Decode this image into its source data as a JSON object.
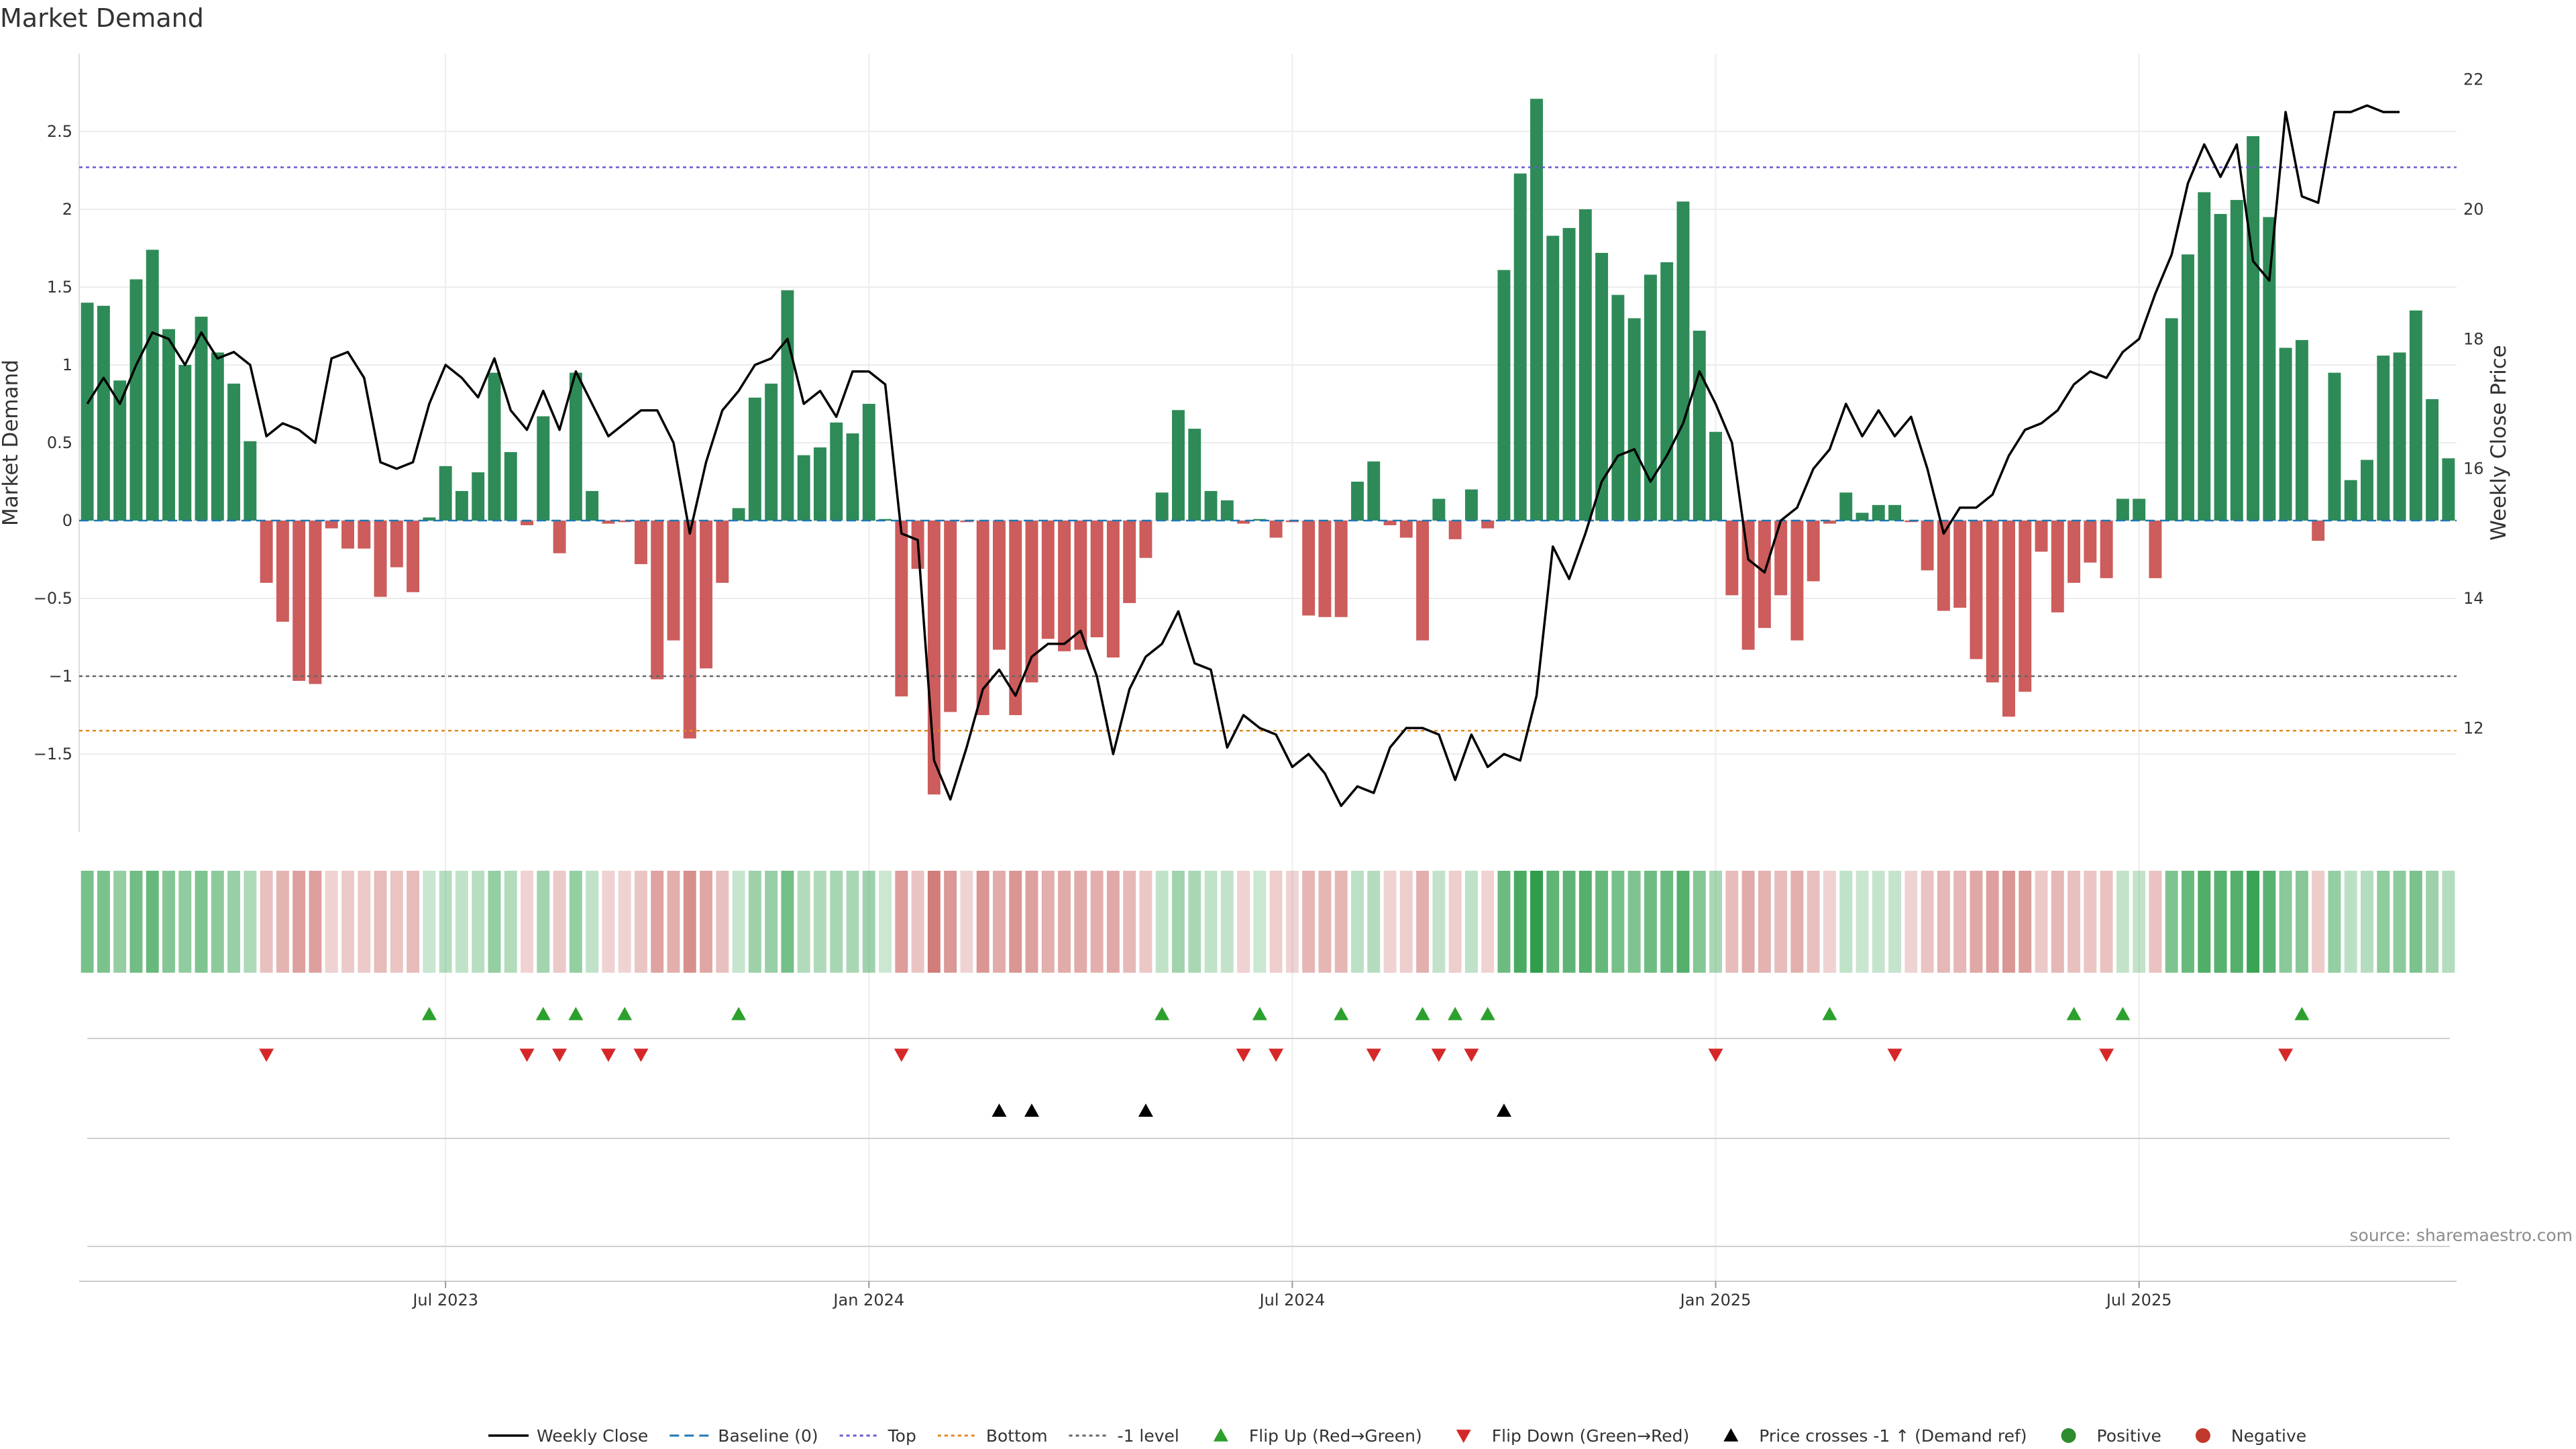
{
  "chart_data": {
    "type": "bar+line",
    "title": "Market Demand",
    "ylabel_left": "Market Demand",
    "ylabel_right": "Weekly Close Price",
    "y_left_range": [
      -2.0,
      3.0
    ],
    "y_left_ticks": [
      -1.5,
      -1,
      -0.5,
      0,
      0.5,
      1,
      1.5,
      2,
      2.5
    ],
    "y_left_tick_labels": [
      "−1.5",
      "−1",
      "−0.5",
      "0",
      "0.5",
      "1",
      "1.5",
      "2",
      "2.5"
    ],
    "y_right_range": [
      10.4,
      22.4
    ],
    "y_right_ticks": [
      12,
      14,
      16,
      18,
      20,
      22
    ],
    "y_right_tick_labels": [
      "12",
      "14",
      "16",
      "18",
      "20",
      "22"
    ],
    "x_tick_labels": [
      "Jul 2023",
      "Jan 2024",
      "Jul 2024",
      "Jan 2025",
      "Jul 2025"
    ],
    "x_tick_weeks": [
      22,
      48,
      74,
      100,
      126
    ],
    "reference_lines": [
      {
        "name": "Baseline (0)",
        "value": 0,
        "color": "#1f77b4"
      },
      {
        "name": "Top",
        "value": 2.27,
        "color": "#6a5acd"
      },
      {
        "name": "Bottom",
        "value": -1.35,
        "color": "#e08a1e"
      },
      {
        "name": "-1 level",
        "value": -1.0,
        "color": "#666666"
      }
    ],
    "demand": [
      1.4,
      1.38,
      0.9,
      1.55,
      1.74,
      1.23,
      1.0,
      1.31,
      1.08,
      0.88,
      0.51,
      -0.4,
      -0.65,
      -1.03,
      -1.05,
      -0.05,
      -0.18,
      -0.18,
      -0.49,
      -0.3,
      -0.46,
      0.02,
      0.35,
      0.19,
      0.31,
      0.95,
      0.44,
      -0.03,
      0.67,
      -0.21,
      0.95,
      0.19,
      -0.02,
      -0.01,
      -0.28,
      -1.02,
      -0.77,
      -1.4,
      -0.95,
      -0.4,
      0.08,
      0.79,
      0.88,
      1.48,
      0.42,
      0.47,
      0.63,
      0.56,
      0.75,
      0.01,
      -1.13,
      -0.31,
      -1.76,
      -1.23,
      -0.01,
      -1.25,
      -0.83,
      -1.25,
      -1.04,
      -0.76,
      -0.84,
      -0.83,
      -0.75,
      -0.88,
      -0.53,
      -0.24,
      0.18,
      0.71,
      0.59,
      0.19,
      0.13,
      -0.02,
      0.01,
      -0.11,
      -0.01,
      -0.61,
      -0.62,
      -0.62,
      0.25,
      0.38,
      -0.03,
      -0.11,
      -0.77,
      0.14,
      -0.12,
      0.2,
      -0.05,
      1.61,
      2.23,
      2.71,
      1.83,
      1.88,
      2.0,
      1.72,
      1.45,
      1.3,
      1.58,
      1.66,
      2.05,
      1.22,
      0.57,
      -0.48,
      -0.83,
      -0.69,
      -0.48,
      -0.77,
      -0.39,
      -0.02,
      0.18,
      0.05,
      0.1,
      0.1,
      -0.01,
      -0.32,
      -0.58,
      -0.56,
      -0.89,
      -1.04,
      -1.26,
      -1.1,
      -0.2,
      -0.59,
      -0.4,
      -0.27,
      -0.37,
      0.14,
      0.14,
      -0.37,
      1.3,
      1.71,
      2.11,
      1.97,
      2.06,
      2.47,
      1.95,
      1.11,
      1.16,
      -0.13,
      0.95,
      0.26,
      0.39,
      1.06,
      1.08,
      1.35,
      0.78,
      0.4
    ],
    "close": [
      17.0,
      17.4,
      17.0,
      17.6,
      18.1,
      18.0,
      17.6,
      18.1,
      17.7,
      17.8,
      17.6,
      16.5,
      16.7,
      16.6,
      16.4,
      17.7,
      17.8,
      17.4,
      16.1,
      16.0,
      16.1,
      17.0,
      17.6,
      17.4,
      17.1,
      17.7,
      16.9,
      16.6,
      17.2,
      16.6,
      17.5,
      17.0,
      16.5,
      16.7,
      16.9,
      16.9,
      16.4,
      15.0,
      16.1,
      16.9,
      17.2,
      17.6,
      17.7,
      18.0,
      17.0,
      17.2,
      16.8,
      17.5,
      17.5,
      17.3,
      15.0,
      14.9,
      11.5,
      10.9,
      11.7,
      12.6,
      12.9,
      12.5,
      13.1,
      13.3,
      13.3,
      13.5,
      12.8,
      11.6,
      12.6,
      13.1,
      13.3,
      13.8,
      13.0,
      12.9,
      11.7,
      12.2,
      12.0,
      11.9,
      11.4,
      11.6,
      11.3,
      10.8,
      11.1,
      11.0,
      11.7,
      12.0,
      12.0,
      11.9,
      11.2,
      11.9,
      11.4,
      11.6,
      11.5,
      12.5,
      14.8,
      14.3,
      15.0,
      15.8,
      16.2,
      16.3,
      15.8,
      16.2,
      16.7,
      17.5,
      17.0,
      16.4,
      14.6,
      14.4,
      15.2,
      15.4,
      16.0,
      16.3,
      17.0,
      16.5,
      16.9,
      16.5,
      16.8,
      16.0,
      15.0,
      15.4,
      15.4,
      15.6,
      16.2,
      16.6,
      16.7,
      16.9,
      17.3,
      17.5,
      17.4,
      17.8,
      18.0,
      18.7,
      19.3,
      20.4,
      21.0,
      20.5,
      21.0,
      19.2,
      18.9,
      21.5,
      20.2,
      20.1,
      21.5,
      21.5,
      21.6,
      21.5,
      21.5
    ],
    "flip_up_weeks": [
      21,
      28,
      30,
      33,
      40,
      66,
      72,
      77,
      82,
      84,
      86,
      107,
      122,
      125,
      136
    ],
    "flip_down_weeks": [
      11,
      27,
      29,
      32,
      34,
      50,
      71,
      73,
      79,
      83,
      85,
      100,
      111,
      124,
      135
    ],
    "price_cross_weeks": [
      56,
      58,
      65,
      87
    ],
    "source_text": "source: sharemaestro.com",
    "legend": [
      {
        "label": "Weekly Close",
        "symbol": "line",
        "color": "#000000"
      },
      {
        "label": "Baseline (0)",
        "symbol": "dash",
        "color": "#1f77b4"
      },
      {
        "label": "Top",
        "symbol": "dot",
        "color": "#6a5acd"
      },
      {
        "label": "Bottom",
        "symbol": "dot",
        "color": "#e08a1e"
      },
      {
        "label": "-1 level",
        "symbol": "dot",
        "color": "#666666"
      },
      {
        "label": "Flip Up (Red→Green)",
        "symbol": "tri-up",
        "color": "#2ca02c"
      },
      {
        "label": "Flip Down (Green→Red)",
        "symbol": "tri-down",
        "color": "#d62728"
      },
      {
        "label": "Price crosses -1 ↑ (Demand ref)",
        "symbol": "tri-up",
        "color": "#000000"
      },
      {
        "label": "Positive",
        "symbol": "circle",
        "color": "#2e8b2e"
      },
      {
        "label": "Negative",
        "symbol": "circle",
        "color": "#c0392b"
      }
    ],
    "colors": {
      "positive_bar": "#2e8b57",
      "negative_bar": "#cd5c5c",
      "price_line": "#000000"
    }
  }
}
